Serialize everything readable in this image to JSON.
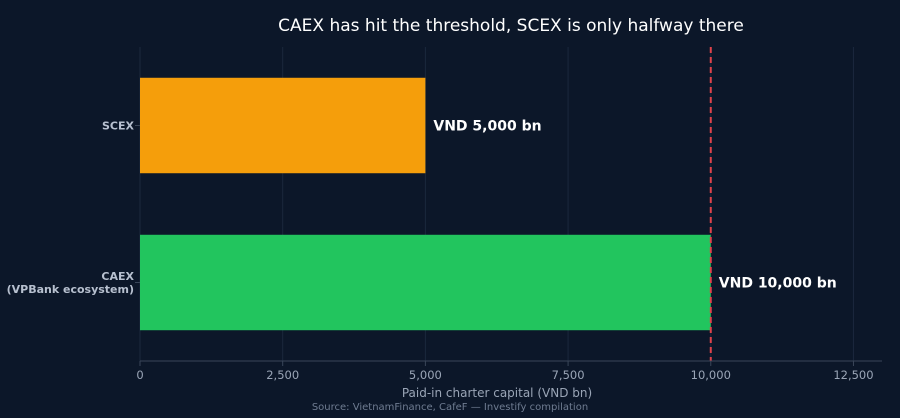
{
  "chart_data": {
    "type": "bar",
    "orientation": "horizontal",
    "title": "CAEX has hit the threshold, SCEX is only halfway there",
    "xlabel": "Paid-in charter capital (VND bn)",
    "source": "Source: VietnamFinance, CafeF — Investify compilation",
    "categories": [
      {
        "lines": [
          "SCEX"
        ]
      },
      {
        "lines": [
          "CAEX",
          "(VPBank ecosystem)"
        ]
      }
    ],
    "values": [
      5000,
      10000
    ],
    "data_labels": [
      "VND 5,000 bn",
      "VND 10,000 bn"
    ],
    "bar_colors": [
      "#f59e0b",
      "#22c55e"
    ],
    "xlim": [
      0,
      13000
    ],
    "xticks": [
      0,
      2500,
      5000,
      7500,
      10000,
      12500
    ],
    "xtick_labels": [
      "0",
      "2,500",
      "5,000",
      "7,500",
      "10,000",
      "12,500"
    ],
    "threshold": {
      "value": 10000,
      "color": "#e0434b",
      "style": "dashed"
    },
    "grid": true,
    "background": "#0c1729"
  }
}
